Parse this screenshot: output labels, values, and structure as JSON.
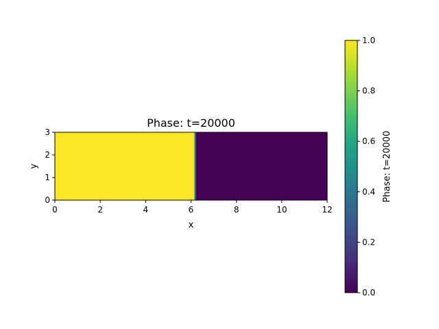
{
  "chart_data": {
    "type": "heatmap",
    "title": "Phase: t=20000",
    "xlabel": "x",
    "ylabel": "y",
    "xlim": [
      0,
      12
    ],
    "ylim": [
      0,
      3
    ],
    "x_ticks": [
      "0",
      "2",
      "4",
      "6",
      "8",
      "10",
      "12"
    ],
    "y_ticks": [
      "0",
      "1",
      "2",
      "3"
    ],
    "interface": {
      "x_start": 6.12,
      "x_end": 6.22,
      "value_left": 1.0,
      "value_right": 0.0
    },
    "colorbar": {
      "label": "Phase: t=20000",
      "range": [
        0.0,
        1.0
      ],
      "ticks": [
        "0.0",
        "0.2",
        "0.4",
        "0.6",
        "0.8",
        "1.0"
      ],
      "colormap": "viridis"
    },
    "grid": false
  }
}
